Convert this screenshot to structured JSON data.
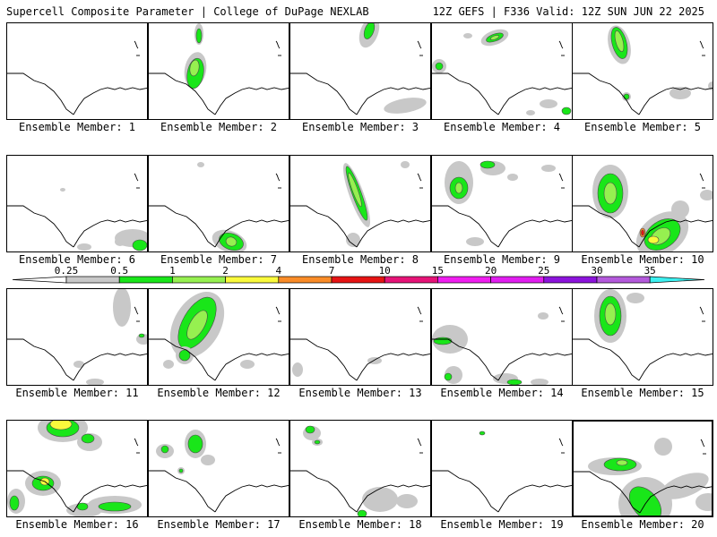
{
  "header": {
    "left": "Supercell Composite Parameter | College of DuPage NEXLAB",
    "right": "12Z GEFS | F336 Valid: 12Z SUN JUN 22 2025"
  },
  "colorbar": {
    "ticks": [
      "0.25",
      "0.5",
      "1",
      "2",
      "4",
      "7",
      "10",
      "15",
      "20",
      "25",
      "30",
      "35"
    ],
    "colors": [
      "#c8c8c8",
      "#19e619",
      "#96f050",
      "#fafa3c",
      "#fa8c28",
      "#e61414",
      "#e61478",
      "#f01ef0",
      "#e11ef0",
      "#8c14dc",
      "#b45adc",
      "#3cf0f0"
    ]
  },
  "panels": [
    {
      "label": "Ensemble Member: 1"
    },
    {
      "label": "Ensemble Member: 2"
    },
    {
      "label": "Ensemble Member: 3"
    },
    {
      "label": "Ensemble Member: 4"
    },
    {
      "label": "Ensemble Member: 5"
    },
    {
      "label": "Ensemble Member: 6"
    },
    {
      "label": "Ensemble Member: 7"
    },
    {
      "label": "Ensemble Member: 8"
    },
    {
      "label": "Ensemble Member: 9"
    },
    {
      "label": "Ensemble Member: 10"
    },
    {
      "label": "Ensemble Member: 11"
    },
    {
      "label": "Ensemble Member: 12"
    },
    {
      "label": "Ensemble Member: 13"
    },
    {
      "label": "Ensemble Member: 14"
    },
    {
      "label": "Ensemble Member: 15"
    },
    {
      "label": "Ensemble Member: 16"
    },
    {
      "label": "Ensemble Member: 17"
    },
    {
      "label": "Ensemble Member: 18"
    },
    {
      "label": "Ensemble Member: 19"
    },
    {
      "label": "Ensemble Member: 20"
    }
  ]
}
